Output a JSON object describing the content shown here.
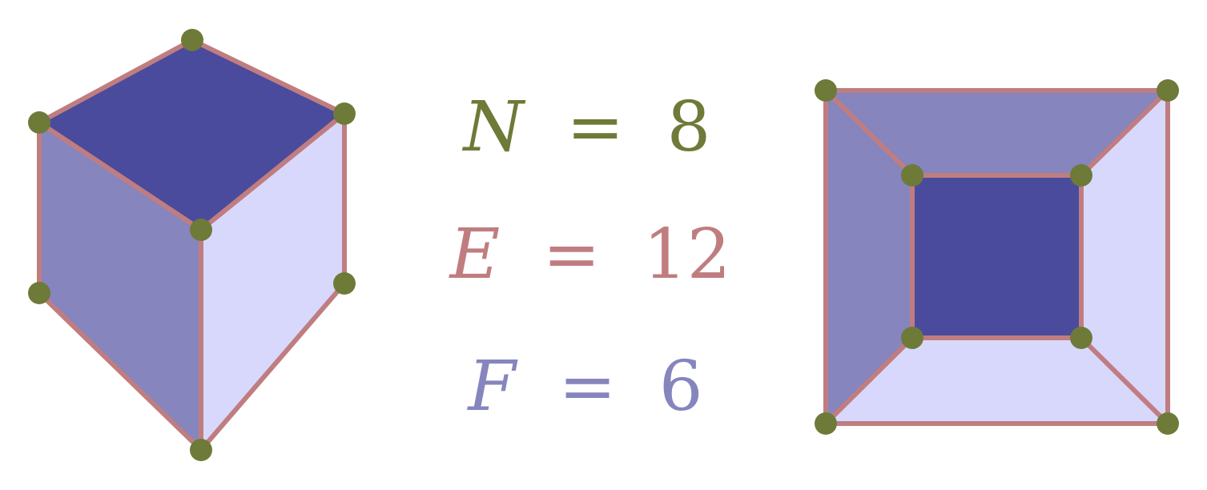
{
  "colors": {
    "edge": "#c07d80",
    "node": "#6e7a38",
    "face_dark": "#4a4b9d",
    "face_mid": "#8685bd",
    "face_light": "#d8d8fd",
    "n_text": "#6e7a38",
    "e_text": "#c07d80",
    "f_text": "#8685bd"
  },
  "equations": {
    "n": {
      "variable": "N",
      "operator": "=",
      "value": "8"
    },
    "e": {
      "variable": "E",
      "operator": "=",
      "value": "12"
    },
    "f": {
      "variable": "F",
      "operator": "=",
      "value": "6"
    }
  },
  "figures": {
    "cube": {
      "nodes": 8,
      "edges": 12,
      "faces": 6
    },
    "planar_graph": {
      "nodes": 8,
      "edges": 12,
      "faces": 6
    }
  }
}
